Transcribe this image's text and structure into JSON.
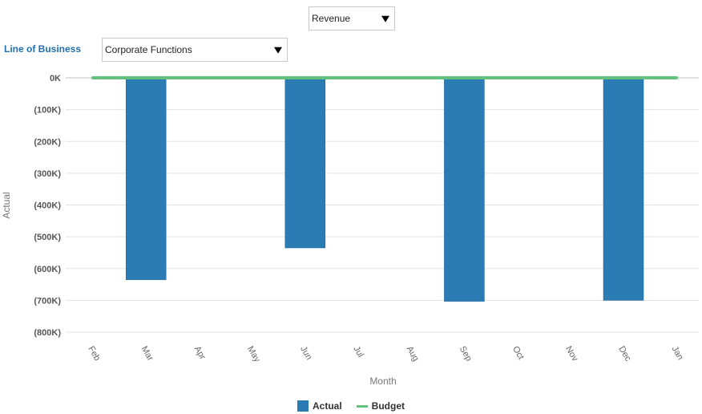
{
  "controls": {
    "measure_value": "Revenue",
    "lob_label": "Line of Business",
    "lob_value": "Corporate Functions"
  },
  "colors": {
    "actual": "#2b7bb5",
    "budget": "#62c17d",
    "grid": "#e3e3e3"
  },
  "chart_data": {
    "type": "bar",
    "categories": [
      "Feb",
      "Mar",
      "Apr",
      "May",
      "Jun",
      "Jul",
      "Aug",
      "Sep",
      "Oct",
      "Nov",
      "Dec",
      "Jan"
    ],
    "series": [
      {
        "name": "Actual",
        "type": "bar",
        "values": [
          0,
          -635,
          0,
          0,
          -535,
          0,
          0,
          -703,
          0,
          0,
          -700,
          0
        ]
      },
      {
        "name": "Budget",
        "type": "line",
        "values": [
          0,
          0,
          0,
          0,
          0,
          0,
          0,
          0,
          0,
          0,
          0,
          0
        ]
      }
    ],
    "xlabel": "Month",
    "ylabel": "Actual",
    "ylim": [
      -800,
      0
    ],
    "yticks": [
      "0K",
      "(100K)",
      "(200K)",
      "(300K)",
      "(400K)",
      "(500K)",
      "(600K)",
      "(700K)",
      "(800K)"
    ],
    "grid": true,
    "legend": "bottom"
  }
}
